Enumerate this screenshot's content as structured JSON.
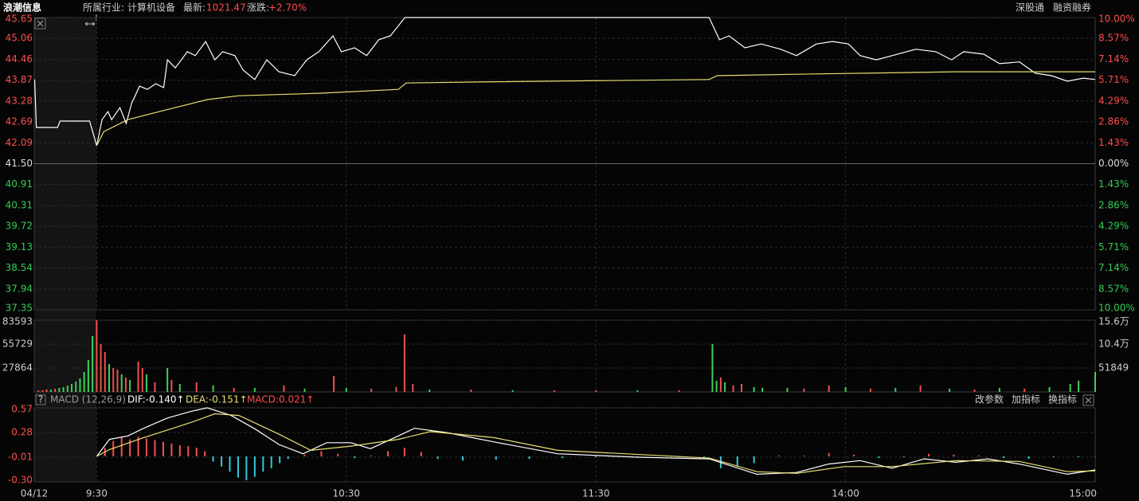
{
  "header": {
    "title": "浪潮信息",
    "industry_label": "所属行业:",
    "industry": "计算机设备",
    "latest_label": "最新:",
    "latest": "1021.47",
    "change_label": "涨跌:",
    "change": "+2.70%",
    "links": [
      "深股通",
      "融资融券"
    ]
  },
  "macd_header": {
    "help": "?",
    "name": "MACD (12,26,9)",
    "dif": "DIF:-0.140↑",
    "dea": "DEA:-0.151↑",
    "macd": "MACD:0.021↑",
    "buttons": [
      "改参数",
      "加指标",
      "换指标"
    ]
  },
  "chart_data": [
    {
      "type": "line",
      "xlim": [
        -15,
        240
      ],
      "ylim": [
        37.35,
        45.65
      ],
      "yticks": [
        45.65,
        45.06,
        44.46,
        43.87,
        43.28,
        42.69,
        42.09,
        {
          "value": 41.5,
          "label": "41.50"
        },
        40.91,
        40.31,
        39.72,
        39.13,
        38.54,
        37.94,
        37.35
      ],
      "y2lim": [
        -10,
        10
      ],
      "y2ticks": [
        {
          "value": 10,
          "label": "10.00%"
        },
        {
          "value": 8.57,
          "label": "8.57%"
        },
        {
          "value": 7.14,
          "label": "7.14%"
        },
        {
          "value": 5.71,
          "label": "5.71%"
        },
        {
          "value": 4.29,
          "label": "4.29%"
        },
        {
          "value": 2.86,
          "label": "2.86%"
        },
        {
          "value": 1.43,
          "label": "1.43%"
        },
        {
          "value": 0,
          "label": "0.00%"
        },
        {
          "value": -1.43,
          "label": "1.43%"
        },
        {
          "value": -2.86,
          "label": "2.86%"
        },
        {
          "value": -4.29,
          "label": "4.29%"
        },
        {
          "value": -5.71,
          "label": "5.71%"
        },
        {
          "value": -7.14,
          "label": "7.14%"
        },
        {
          "value": -8.57,
          "label": "8.57%"
        },
        {
          "value": -10,
          "label": "10.00%"
        }
      ],
      "up_color": "#ff4d4d",
      "down_color": "#33cc55",
      "flat_color": "#dddddd",
      "series": [
        {
          "color": "#ffffff",
          "x": [
            -14.9,
            -14.5,
            -9.4,
            -8.8,
            -1.7,
            0,
            1.3,
            2.7,
            3.6,
            5.6,
            7.1,
            8.4,
            10.3,
            12.2,
            14.2,
            16.1,
            17.0,
            18.9,
            21.8,
            23.7,
            26.2,
            28.4,
            30.3,
            33.2,
            35.2,
            38.0,
            40.9,
            43.8,
            47.6,
            50.5,
            53.4,
            56.8,
            58.8,
            62.0,
            64.9,
            67.8,
            70.6,
            74.1,
            147.2,
            149.7,
            152.0,
            155.8,
            159.7,
            164.4,
            168.2,
            173.0,
            176.9,
            180.7,
            183.5,
            187.4,
            191.2,
            196.9,
            201.7,
            205.5,
            208.4,
            213.2,
            217.0,
            221.8,
            225.6,
            229.5,
            233.3,
            237.1,
            240
          ],
          "values": [
            43.89,
            42.53,
            42.53,
            42.71,
            42.71,
            42.01,
            42.75,
            42.98,
            42.75,
            43.09,
            42.64,
            43.21,
            43.7,
            43.61,
            43.77,
            43.66,
            44.45,
            44.22,
            44.68,
            44.57,
            44.97,
            44.45,
            44.68,
            44.57,
            44.16,
            43.89,
            44.45,
            44.11,
            44.0,
            44.45,
            44.68,
            45.13,
            44.68,
            44.79,
            44.57,
            45.02,
            45.13,
            45.65,
            45.65,
            45.02,
            45.13,
            44.79,
            44.9,
            44.75,
            44.57,
            44.9,
            44.97,
            44.9,
            44.57,
            44.45,
            44.57,
            44.75,
            44.68,
            44.45,
            44.68,
            44.61,
            44.34,
            44.39,
            44.07,
            44.0,
            43.84,
            43.93,
            43.89
          ]
        },
        {
          "color": "#e8e070",
          "x": [
            0,
            1.7,
            7.5,
            15.1,
            26.6,
            34.2,
            53.4,
            72.5,
            74.4,
            91.6,
            147.2,
            149.1,
            168.2,
            206.5,
            240
          ],
          "values": [
            42.01,
            42.41,
            42.75,
            42.98,
            43.32,
            43.43,
            43.5,
            43.61,
            43.79,
            43.82,
            43.89,
            44.0,
            44.04,
            44.11,
            44.11
          ]
        }
      ]
    },
    {
      "type": "bar",
      "xlim": [
        -15,
        240
      ],
      "ylim": [
        0,
        83593
      ],
      "yticks": [
        27864,
        55729,
        83593
      ],
      "y2lim": [
        0,
        155547
      ],
      "y2ticks": [
        51849,
        {
          "value": 103698,
          "label": "10.4万"
        },
        {
          "value": 155547,
          "label": "15.6万"
        }
      ],
      "x": [
        -14,
        -13,
        -12,
        -11,
        -10,
        -9,
        -8,
        -7,
        -6,
        -5,
        -4,
        -3,
        -2,
        -1,
        0,
        1,
        2,
        3,
        4,
        5,
        6,
        7,
        8,
        10,
        11,
        12,
        14,
        17,
        18,
        20,
        24,
        28,
        33,
        38,
        45,
        50,
        57,
        60,
        66,
        72,
        74,
        76,
        80,
        90,
        100,
        110,
        120,
        130,
        140,
        148,
        149,
        150,
        151,
        153,
        155,
        158,
        160,
        166,
        170,
        176,
        180,
        186,
        192,
        198,
        205,
        211,
        217,
        223,
        229,
        234,
        236,
        240
      ],
      "values": [
        1858,
        1858,
        2787,
        2787,
        3716,
        4645,
        5574,
        7432,
        9290,
        12077,
        15793,
        23225,
        37160,
        65030,
        83593,
        55740,
        46450,
        32515,
        27870,
        26012,
        20438,
        16722,
        13935,
        35302,
        27870,
        20438,
        11148,
        27870,
        13935,
        9290,
        11148,
        7432,
        4645,
        4645,
        7432,
        3716,
        18580,
        4645,
        3716,
        5574,
        66888,
        9290,
        2787,
        2787,
        1858,
        1858,
        1858,
        1858,
        1858,
        55740,
        13006,
        16722,
        11148,
        7432,
        9290,
        5574,
        4645,
        4645,
        3716,
        7432,
        5574,
        3716,
        4645,
        7432,
        3716,
        2787,
        4645,
        3716,
        5574,
        9290,
        13006,
        23225
      ],
      "colors": [
        "#f05050",
        "#f05050",
        "#f05050",
        "#3cd05a",
        "#f05050",
        "#3cd05a",
        "#3cd05a",
        "#3cd05a",
        "#3cd05a",
        "#3cd05a",
        "#3cd05a",
        "#3cd05a",
        "#3cd05a",
        "#3cd05a",
        "#f05050",
        "#f05050",
        "#f05050",
        "#3cd05a",
        "#f05050",
        "#f05050",
        "#3cd05a",
        "#f05050",
        "#3cd05a",
        "#f05050",
        "#f05050",
        "#3cd05a",
        "#f05050",
        "#3cd05a",
        "#f05050",
        "#3cd05a",
        "#f05050",
        "#3cd05a",
        "#f05050",
        "#3cd05a",
        "#f05050",
        "#3cd05a",
        "#f05050",
        "#3cd05a",
        "#f05050",
        "#f05050",
        "#f05050",
        "#f05050",
        "#3cd05a",
        "#f05050",
        "#3cd05a",
        "#f05050",
        "#f05050",
        "#3cd05a",
        "#f05050",
        "#3cd05a",
        "#3cd05a",
        "#f05050",
        "#3cd05a",
        "#f05050",
        "#f05050",
        "#3cd05a",
        "#3cd05a",
        "#3cd05a",
        "#f05050",
        "#f05050",
        "#3cd05a",
        "#f05050",
        "#3cd05a",
        "#f05050",
        "#3cd05a",
        "#f05050",
        "#3cd05a",
        "#f05050",
        "#3cd05a",
        "#3cd05a",
        "#3cd05a",
        "#3cd05a"
      ]
    },
    {
      "type": "macd",
      "xlim": [
        -15,
        240
      ],
      "ylim": [
        -0.3,
        0.57
      ],
      "yticks": [
        0.57,
        0.28,
        -0.01,
        {
          "value": -0.3,
          "label": "-0.30"
        }
      ],
      "xticks": [
        {
          "value": -15,
          "label": "04/12"
        },
        {
          "value": 0,
          "label": "9:30"
        },
        {
          "value": 60,
          "label": "10:30"
        },
        {
          "value": 120,
          "label": "11:30"
        },
        {
          "value": 180,
          "label": "14:00"
        },
        {
          "value": 240,
          "label": "15:00"
        }
      ],
      "histogram": {
        "up_color": "#ff4d4d",
        "down_color": "#36c8d8",
        "x": [
          2,
          4,
          6,
          8,
          10,
          12,
          14,
          16,
          18,
          20,
          22,
          24,
          26,
          28,
          30,
          32,
          34,
          36,
          38,
          40,
          42,
          44,
          46,
          50,
          54,
          58,
          62,
          66,
          70,
          74,
          78,
          82,
          88,
          96,
          104,
          112,
          120,
          130,
          140,
          146,
          150,
          154,
          158,
          164,
          170,
          176,
          182,
          188,
          194,
          200,
          206,
          212,
          218,
          224,
          230,
          236,
          240
        ],
        "values": [
          0.1,
          0.18,
          0.22,
          0.2,
          0.23,
          0.21,
          0.19,
          0.17,
          0.15,
          0.13,
          0.12,
          0.1,
          0.06,
          -0.06,
          -0.12,
          -0.18,
          -0.25,
          -0.28,
          -0.24,
          -0.18,
          -0.14,
          -0.08,
          -0.03,
          0.02,
          0.06,
          0.03,
          -0.02,
          0.01,
          0.06,
          0.1,
          0.05,
          -0.03,
          -0.05,
          -0.04,
          -0.03,
          -0.02,
          -0.01,
          -0.01,
          -0.01,
          -0.01,
          -0.14,
          -0.12,
          -0.08,
          0.01,
          0.01,
          0.04,
          0.02,
          -0.02,
          -0.01,
          0.03,
          0.02,
          0.01,
          -0.02,
          -0.03,
          -0.01,
          -0.01,
          0
        ]
      },
      "series": [
        {
          "color": "#ffffff",
          "x": [
            0,
            3.1,
            7.5,
            11.3,
            17.0,
            22.8,
            26.6,
            32.3,
            38.1,
            43.8,
            49.6,
            55.3,
            61.1,
            65.8,
            72.5,
            76.4,
            84.0,
            95.5,
            110.8,
            130.0,
            147.2,
            158.7,
            168.2,
            175.9,
            183.5,
            191.2,
            198.9,
            206.5,
            214.2,
            221.8,
            233.3,
            240
          ],
          "values": [
            0,
            0.2,
            0.24,
            0.33,
            0.45,
            0.53,
            0.57,
            0.48,
            0.32,
            0.14,
            0.03,
            0.16,
            0.16,
            0.09,
            0.24,
            0.33,
            0.28,
            0.17,
            0.03,
            -0.01,
            -0.03,
            -0.21,
            -0.19,
            -0.09,
            -0.05,
            -0.14,
            -0.03,
            -0.07,
            -0.03,
            -0.09,
            -0.21,
            -0.16
          ]
        },
        {
          "color": "#e8e070",
          "x": [
            0,
            3.1,
            11.3,
            22.8,
            28.4,
            34.2,
            43.8,
            51.5,
            61.1,
            72.5,
            80.2,
            95.5,
            110.8,
            147.2,
            158.7,
            168.2,
            179.7,
            191.2,
            206.5,
            221.8,
            233.3,
            240
          ],
          "values": [
            0,
            0.08,
            0.22,
            0.4,
            0.5,
            0.48,
            0.26,
            0.07,
            0.12,
            0.2,
            0.29,
            0.22,
            0.07,
            -0.02,
            -0.18,
            -0.2,
            -0.12,
            -0.12,
            -0.05,
            -0.06,
            -0.18,
            -0.17
          ]
        }
      ]
    }
  ]
}
